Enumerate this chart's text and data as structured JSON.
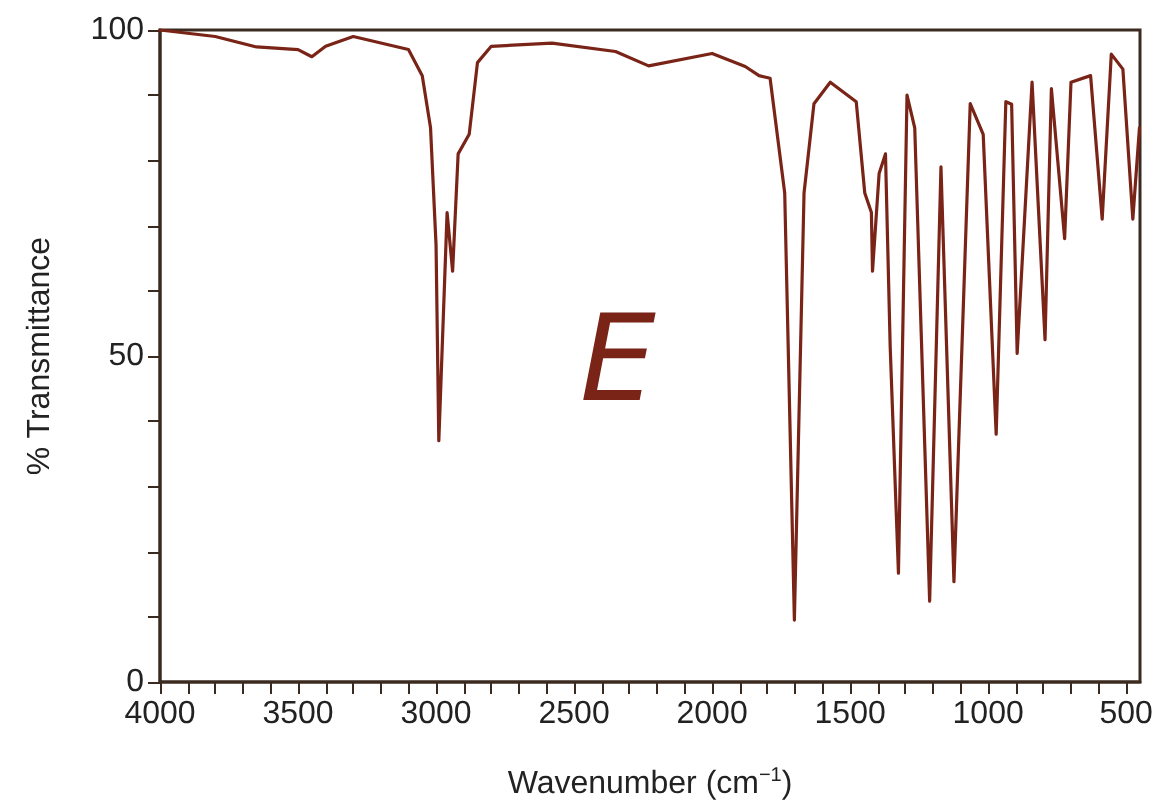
{
  "chart_data": {
    "type": "line",
    "xlabel": "Wavenumber (cm$^{−1}$)",
    "ylabel": "% Transmittance",
    "annotations": [
      "E"
    ],
    "x": [
      4000,
      3800,
      3650,
      3500,
      3450,
      3400,
      3300,
      3100,
      3050,
      3020,
      3000,
      2990,
      2960,
      2940,
      2920,
      2880,
      2850,
      2800,
      2580,
      2350,
      2230,
      2000,
      1880,
      1830,
      1790,
      1737,
      1702,
      1667,
      1631,
      1572,
      1478,
      1447,
      1423,
      1419,
      1395,
      1372,
      1355,
      1325,
      1294,
      1266,
      1212,
      1171,
      1124,
      1065,
      1018,
      971,
      936,
      915,
      895,
      841,
      794,
      771,
      723,
      700,
      629,
      587,
      554,
      512,
      476,
      452
    ],
    "series": [
      {
        "color": "#7a2418",
        "values": [
          100,
          99,
          97.4,
          97,
          95.9,
          97.5,
          99,
          97,
          93,
          85,
          67,
          37,
          72,
          63,
          81,
          84,
          95,
          97.5,
          98,
          96.7,
          94.5,
          96.4,
          94.4,
          93,
          92.6,
          75,
          9.5,
          75,
          88.7,
          92,
          89,
          75,
          72,
          63,
          78,
          81,
          51.5,
          16.7,
          90,
          85,
          12.4,
          79,
          15.4,
          88.7,
          84,
          38,
          89,
          88.6,
          50.4,
          92,
          52.5,
          91,
          68,
          92,
          93,
          71,
          96.3,
          94,
          71,
          85
        ]
      }
    ],
    "xlim": [
      4000,
      450
    ],
    "xticks": [
      4000,
      {
        "value": 3900,
        "label": null
      },
      {
        "value": 3800,
        "label": null
      },
      {
        "value": 3700,
        "label": null
      },
      {
        "value": 3600,
        "label": null
      },
      3500,
      {
        "value": 3400,
        "label": null
      },
      {
        "value": 3300,
        "label": null
      },
      {
        "value": 3200,
        "label": null
      },
      {
        "value": 3100,
        "label": null
      },
      3000,
      {
        "value": 2900,
        "label": null
      },
      {
        "value": 2800,
        "label": null
      },
      {
        "value": 2700,
        "label": null
      },
      {
        "value": 2600,
        "label": null
      },
      2500,
      {
        "value": 2400,
        "label": null
      },
      {
        "value": 2300,
        "label": null
      },
      {
        "value": 2200,
        "label": null
      },
      {
        "value": 2100,
        "label": null
      },
      2000,
      {
        "value": 1900,
        "label": null
      },
      {
        "value": 1800,
        "label": null
      },
      {
        "value": 1700,
        "label": null
      },
      {
        "value": 1600,
        "label": null
      },
      1500,
      {
        "value": 1400,
        "label": null
      },
      {
        "value": 1300,
        "label": null
      },
      {
        "value": 1200,
        "label": null
      },
      {
        "value": 1100,
        "label": null
      },
      1000,
      {
        "value": 900,
        "label": null
      },
      {
        "value": 800,
        "label": null
      },
      {
        "value": 700,
        "label": null
      },
      {
        "value": 600,
        "label": null
      },
      500
    ],
    "ylim": [
      0,
      100
    ],
    "yticks": [
      0,
      {
        "value": 10,
        "label": null
      },
      {
        "value": 20,
        "label": null
      },
      {
        "value": 30,
        "label": null
      },
      {
        "value": 40,
        "label": null
      },
      50,
      {
        "value": 60,
        "label": null
      },
      {
        "value": 70,
        "label": null
      },
      {
        "value": 80,
        "label": null
      },
      {
        "value": 90,
        "label": null
      },
      100
    ],
    "grid": false,
    "marker": "none",
    "line_style": "solid"
  }
}
